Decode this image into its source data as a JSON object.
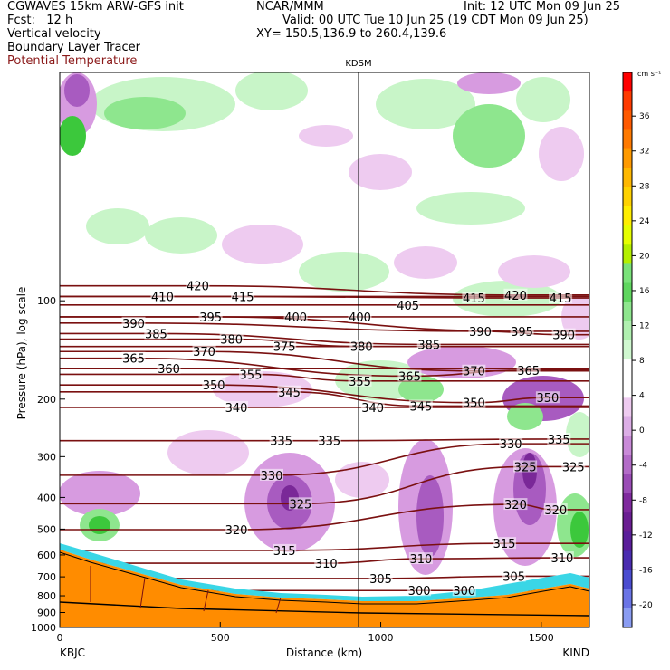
{
  "header": {
    "model": "CGWAVES 15km ARW-GFS init",
    "org": "NCAR/MMM",
    "init": "Init: 12 UTC Mon 09 Jun 25",
    "fcst": "Fcst:   12 h",
    "valid": "Valid: 00 UTC Tue 10 Jun 25 (19 CDT Mon 09 Jun 25)",
    "field1": "Vertical velocity",
    "xy": "XY= 150.5,136.9 to 260.4,139.6",
    "field2": "Boundary Layer Tracer",
    "field3": "Potential Temperature"
  },
  "colors": {
    "theta": "#7a1010",
    "terrain": "#ff8c00",
    "up_light": "#c8f5c8",
    "up_mid": "#8ee68e",
    "up_strong": "#3cc83c",
    "down_light": "#eecbf0",
    "down_mid": "#d79be0",
    "down_strong": "#a85bc0",
    "down_vstrong": "#7a2898"
  },
  "chart_data": {
    "type": "heatmap",
    "title": "KDSM",
    "xlabel": "Distance (km)",
    "ylabel": "Pressure (hPa), log scale",
    "xlim": [
      0,
      1650
    ],
    "ylim": [
      1000,
      20
    ],
    "y_scale": "log",
    "x_ticks": [
      0,
      500,
      1000,
      1500
    ],
    "y_ticks": [
      100,
      200,
      300,
      400,
      500,
      600,
      700,
      800,
      900,
      1000
    ],
    "left_station": "KBJC",
    "right_station": "KIND",
    "center_station_x_km": 935,
    "colorbar": {
      "unit": "cm s⁻¹",
      "labels": [
        "36",
        "32",
        "28",
        "24",
        "20",
        "16",
        "12",
        "8",
        "4",
        "0",
        "-4",
        "-8",
        "-12",
        "-16",
        "-20"
      ],
      "colors": [
        "#ff0000",
        "#ff3a00",
        "#ff5a00",
        "#ff7a00",
        "#ff9a00",
        "#ffb800",
        "#ffd200",
        "#ffee00",
        "#e6ff00",
        "#b4f000",
        "#7ae27a",
        "#5fd65f",
        "#8ee68e",
        "#b0f0b0",
        "#d0f8d0",
        "#ffffff",
        "#ffffff",
        "#eecbf0",
        "#dcaee6",
        "#c98ad8",
        "#b36cc8",
        "#9a4cb6",
        "#7f2a9e",
        "#6a1e92",
        "#5a1e9a",
        "#4a2cb0",
        "#4a4cd0",
        "#6a74e6",
        "#8a9cf2"
      ]
    },
    "theta_labels": [
      {
        "value": "420",
        "x_km": 430,
        "p": 90
      },
      {
        "value": "410",
        "x_km": 320,
        "p": 97
      },
      {
        "value": "415",
        "x_km": 570,
        "p": 97
      },
      {
        "value": "405",
        "x_km": 1085,
        "p": 103
      },
      {
        "value": "415",
        "x_km": 1290,
        "p": 98
      },
      {
        "value": "420",
        "x_km": 1420,
        "p": 96
      },
      {
        "value": "415",
        "x_km": 1560,
        "p": 98
      },
      {
        "value": "390",
        "x_km": 230,
        "p": 117
      },
      {
        "value": "395",
        "x_km": 470,
        "p": 112
      },
      {
        "value": "400",
        "x_km": 735,
        "p": 112
      },
      {
        "value": "400",
        "x_km": 935,
        "p": 112
      },
      {
        "value": "390",
        "x_km": 1310,
        "p": 124
      },
      {
        "value": "395",
        "x_km": 1440,
        "p": 124
      },
      {
        "value": "390",
        "x_km": 1570,
        "p": 127
      },
      {
        "value": "385",
        "x_km": 300,
        "p": 126
      },
      {
        "value": "380",
        "x_km": 535,
        "p": 131
      },
      {
        "value": "375",
        "x_km": 700,
        "p": 138
      },
      {
        "value": "380",
        "x_km": 940,
        "p": 138
      },
      {
        "value": "385",
        "x_km": 1150,
        "p": 136
      },
      {
        "value": "365",
        "x_km": 230,
        "p": 150
      },
      {
        "value": "370",
        "x_km": 450,
        "p": 143
      },
      {
        "value": "360",
        "x_km": 340,
        "p": 161
      },
      {
        "value": "355",
        "x_km": 595,
        "p": 168
      },
      {
        "value": "355",
        "x_km": 935,
        "p": 176
      },
      {
        "value": "365",
        "x_km": 1090,
        "p": 170
      },
      {
        "value": "370",
        "x_km": 1290,
        "p": 164
      },
      {
        "value": "365",
        "x_km": 1460,
        "p": 163
      },
      {
        "value": "350",
        "x_km": 480,
        "p": 181
      },
      {
        "value": "345",
        "x_km": 715,
        "p": 190
      },
      {
        "value": "350",
        "x_km": 1290,
        "p": 205
      },
      {
        "value": "350",
        "x_km": 1520,
        "p": 198
      },
      {
        "value": "340",
        "x_km": 550,
        "p": 212
      },
      {
        "value": "340",
        "x_km": 975,
        "p": 212
      },
      {
        "value": "345",
        "x_km": 1125,
        "p": 210
      },
      {
        "value": "335",
        "x_km": 690,
        "p": 268
      },
      {
        "value": "335",
        "x_km": 840,
        "p": 268
      },
      {
        "value": "330",
        "x_km": 1405,
        "p": 274
      },
      {
        "value": "335",
        "x_km": 1555,
        "p": 265
      },
      {
        "value": "330",
        "x_km": 660,
        "p": 342
      },
      {
        "value": "325",
        "x_km": 1450,
        "p": 322
      },
      {
        "value": "325",
        "x_km": 1600,
        "p": 322
      },
      {
        "value": "325",
        "x_km": 750,
        "p": 418
      },
      {
        "value": "320",
        "x_km": 1420,
        "p": 420
      },
      {
        "value": "320",
        "x_km": 1545,
        "p": 436
      },
      {
        "value": "320",
        "x_km": 550,
        "p": 502
      },
      {
        "value": "315",
        "x_km": 700,
        "p": 581
      },
      {
        "value": "315",
        "x_km": 1385,
        "p": 553
      },
      {
        "value": "310",
        "x_km": 830,
        "p": 636
      },
      {
        "value": "310",
        "x_km": 1125,
        "p": 616
      },
      {
        "value": "310",
        "x_km": 1565,
        "p": 612
      },
      {
        "value": "305",
        "x_km": 1000,
        "p": 708
      },
      {
        "value": "305",
        "x_km": 1415,
        "p": 697
      },
      {
        "value": "300",
        "x_km": 1120,
        "p": 771
      },
      {
        "value": "300",
        "x_km": 1260,
        "p": 771
      }
    ]
  }
}
